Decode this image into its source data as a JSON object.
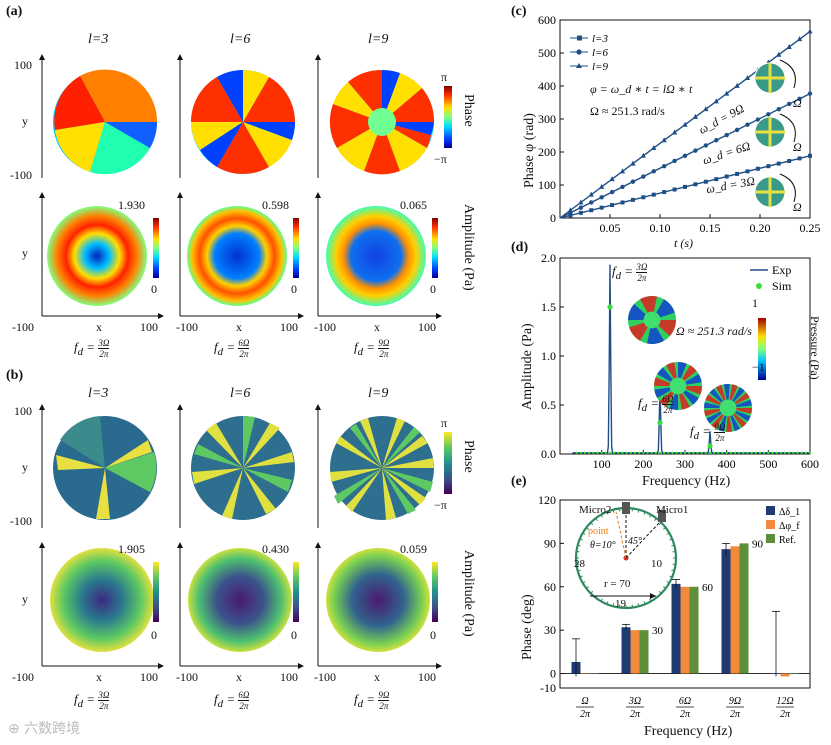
{
  "labels": {
    "a": "(a)",
    "b": "(b)",
    "c": "(c)",
    "d": "(d)",
    "e": "(e)"
  },
  "columns": [
    "l=3",
    "l=6",
    "l=9"
  ],
  "phase_label": "Phase",
  "amp_label": "Amplitude (Pa)",
  "pi": "π",
  "neg_pi": "−π",
  "axis": {
    "y": "y",
    "x": "x",
    "v100": "100",
    "vneg100": "-100"
  },
  "a_amp_max": [
    "1.930",
    "0.598",
    "0.065"
  ],
  "b_amp_max": [
    "1.905",
    "0.430",
    "0.059"
  ],
  "zero": "0",
  "fd_prefix": "f",
  "fd_sub": "d",
  "fd_nums": [
    "3Ω",
    "6Ω",
    "9Ω"
  ],
  "fd_den": "2π",
  "chart_c": {
    "type": "line",
    "ylabel": "Phase φ (rad)",
    "xlabel": "t (s)",
    "xlim": [
      0,
      0.25
    ],
    "ylim": [
      0,
      600
    ],
    "xticks": [
      "0.05",
      "0.10",
      "0.15",
      "0.20",
      "0.25"
    ],
    "yticks": [
      "0",
      "100",
      "200",
      "300",
      "400",
      "500",
      "600"
    ],
    "legend": [
      "l=3",
      "l=6",
      "l=9"
    ],
    "series": [
      {
        "name": "l=3",
        "slope": 753.9
      },
      {
        "name": "l=6",
        "slope": 1507.9
      },
      {
        "name": "l=9",
        "slope": 2261.9
      }
    ],
    "eq1": "φ = ω_d ∗ t = lΩ ∗ t",
    "eq2": "Ω ≈ 251.3 rad/s",
    "w_labels": [
      "ω_d = 9Ω",
      "ω_d = 6Ω",
      "ω_d = 3Ω"
    ],
    "omega": "Ω"
  },
  "chart_d": {
    "type": "line",
    "ylabel": "Amplitude (Pa)",
    "xlabel": "Frequency (Hz)",
    "xlim": [
      0,
      600
    ],
    "ylim": [
      0,
      2.0
    ],
    "xticks": [
      "100",
      "200",
      "300",
      "400",
      "500",
      "600"
    ],
    "yticks": [
      "0.0",
      "0.5",
      "1.0",
      "1.5",
      "2.0"
    ],
    "legend": [
      "Exp",
      "Sim"
    ],
    "peaks": [
      {
        "x": 120,
        "y": 1.92
      },
      {
        "x": 240,
        "y": 0.68
      },
      {
        "x": 360,
        "y": 0.22
      }
    ],
    "sim": [
      {
        "x": 120,
        "y": 1.5
      },
      {
        "x": 240,
        "y": 0.32
      },
      {
        "x": 360,
        "y": 0.08
      }
    ],
    "omega_text": "Ω ≈ 251.3 rad/s",
    "cb_max": "1",
    "cb_min": "−1",
    "cb_label": "Pressure (Pa)",
    "fd_nums": [
      "3Ω",
      "6Ω",
      "9Ω"
    ]
  },
  "chart_e": {
    "type": "bar",
    "ylabel": "Phase (deg)",
    "xlabel": "Frequency (Hz)",
    "ylim": [
      -10,
      120
    ],
    "yticks": [
      "-10",
      "0",
      "30",
      "60",
      "90",
      "120"
    ],
    "categories": [
      "Ω",
      "3Ω",
      "6Ω",
      "9Ω",
      "12Ω"
    ],
    "cat_den": "2π",
    "legend": [
      "Δδ_1",
      "Δφ_f",
      "Ref."
    ],
    "series": [
      {
        "name": "Δδ1",
        "values": [
          8,
          32,
          62,
          86,
          0
        ]
      },
      {
        "name": "Δφf",
        "values": [
          0,
          30,
          60,
          88,
          -2
        ]
      },
      {
        "name": "Ref.",
        "values": [
          0,
          30,
          60,
          90,
          0
        ]
      }
    ],
    "err": [
      16,
      2,
      3,
      4,
      43
    ],
    "ref_labels": [
      "30",
      "60",
      "90"
    ],
    "colors": [
      "#1f3b73",
      "#f28a3c",
      "#5e8f3a"
    ],
    "inset": {
      "micro2": "Micro2",
      "micro1": "Micro1",
      "point": "point",
      "theta": "θ=10°",
      "deg45": "45°",
      "r": "r = 70",
      "n28": "28",
      "n10": "10",
      "n19": "19"
    }
  }
}
